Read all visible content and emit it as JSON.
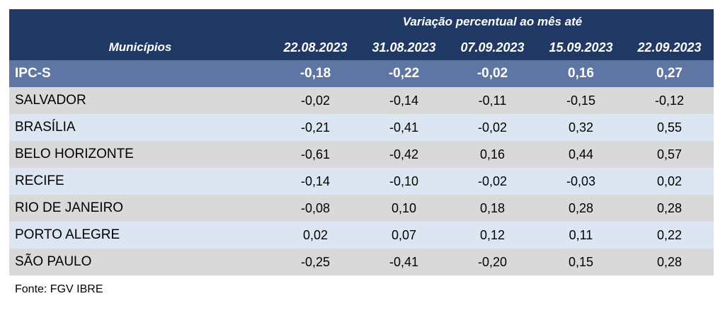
{
  "table": {
    "group_header": "Variação percentual ao mês até",
    "first_col_header": "Municípios",
    "dates": [
      "22.08.2023",
      "31.08.2023",
      "07.09.2023",
      "15.09.2023",
      "22.09.2023"
    ],
    "index_row": {
      "name": "IPC-S",
      "values": [
        "-0,18",
        "-0,22",
        "-0,02",
        "0,16",
        "0,27"
      ]
    },
    "rows": [
      {
        "name": "SALVADOR",
        "values": [
          "-0,02",
          "-0,14",
          "-0,11",
          "-0,15",
          "-0,12"
        ]
      },
      {
        "name": "BRASÍLIA",
        "values": [
          "-0,21",
          "-0,41",
          "-0,02",
          "0,32",
          "0,55"
        ]
      },
      {
        "name": "BELO HORIZONTE",
        "values": [
          "-0,61",
          "-0,42",
          "0,16",
          "0,44",
          "0,57"
        ]
      },
      {
        "name": "RECIFE",
        "values": [
          "-0,14",
          "-0,10",
          "-0,02",
          "-0,03",
          "0,02"
        ]
      },
      {
        "name": "RIO DE JANEIRO",
        "values": [
          "-0,08",
          "0,10",
          "0,18",
          "0,28",
          "0,28"
        ]
      },
      {
        "name": "PORTO ALEGRE",
        "values": [
          "0,02",
          "0,07",
          "0,12",
          "0,11",
          "0,22"
        ]
      },
      {
        "name": "SÃO PAULO",
        "values": [
          "-0,25",
          "-0,41",
          "-0,20",
          "0,15",
          "0,28"
        ]
      }
    ]
  },
  "source": "Fonte: FGV IBRE",
  "colors": {
    "header_bg": "#1f3864",
    "index_bg": "#5f75a4",
    "row_gray": "#d9d9d9",
    "row_blue": "#dce6f2"
  }
}
